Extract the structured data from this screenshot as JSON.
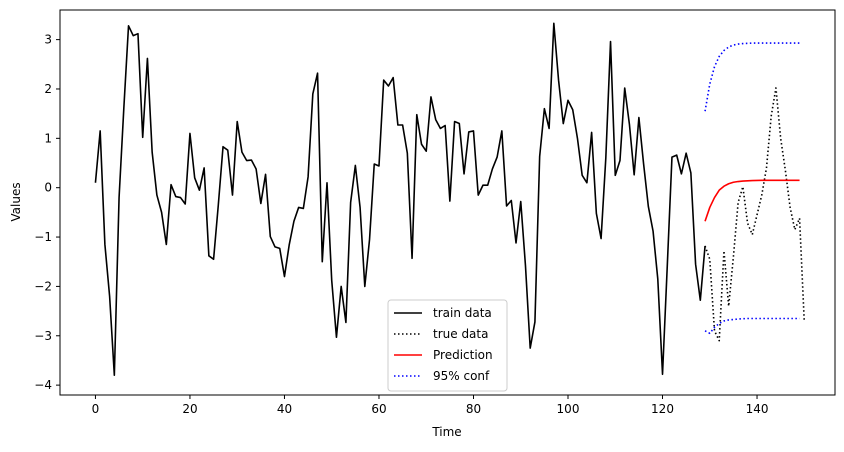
{
  "chart_data": {
    "type": "line",
    "title": "",
    "xlabel": "Time",
    "ylabel": "Values",
    "xlim": [
      -7.5,
      156.5
    ],
    "ylim": [
      -4.2,
      3.6
    ],
    "xticks": [
      0,
      20,
      40,
      60,
      80,
      100,
      120,
      140
    ],
    "yticks": [
      -4,
      -3,
      -2,
      -1,
      0,
      1,
      2,
      3
    ],
    "grid": false,
    "legend_position": "lower center",
    "series": [
      {
        "name": "train data",
        "style": "solid",
        "color": "#000000",
        "x_start": 0,
        "values": [
          0.1,
          1.15,
          -1.15,
          -2.2,
          -3.8,
          -0.2,
          1.6,
          3.28,
          3.08,
          3.12,
          1.02,
          2.62,
          0.72,
          -0.15,
          -0.5,
          -1.15,
          0.06,
          -0.18,
          -0.2,
          -0.33,
          1.1,
          0.2,
          -0.05,
          0.4,
          -1.38,
          -1.45,
          -0.35,
          0.83,
          0.76,
          -0.15,
          1.34,
          0.72,
          0.55,
          0.56,
          0.38,
          -0.32,
          0.27,
          -0.99,
          -1.2,
          -1.23,
          -1.8,
          -1.16,
          -0.68,
          -0.4,
          -0.42,
          0.22,
          1.9,
          2.32,
          -1.5,
          0.1,
          -1.88,
          -3.03,
          -2.0,
          -2.73,
          -0.3,
          0.45,
          -0.4,
          -2.0,
          -1.05,
          0.48,
          0.44,
          2.18,
          2.06,
          2.23,
          1.27,
          1.27,
          0.7,
          -1.43,
          1.48,
          0.88,
          0.74,
          1.84,
          1.38,
          1.2,
          1.26,
          -0.27,
          1.34,
          1.3,
          0.28,
          1.13,
          1.15,
          -0.15,
          0.05,
          0.05,
          0.38,
          0.62,
          1.15,
          -0.37,
          -0.26,
          -1.12,
          -0.28,
          -1.58,
          -3.25,
          -2.72,
          0.63,
          1.6,
          1.2,
          3.33,
          2.18,
          1.3,
          1.77,
          1.58,
          1.0,
          0.25,
          0.1,
          1.12,
          -0.52,
          -1.03,
          0.6,
          2.96,
          0.25,
          0.55,
          2.02,
          1.28,
          0.26,
          1.42,
          0.48,
          -0.38,
          -0.88,
          -1.85,
          -3.78,
          -1.6,
          0.62,
          0.66,
          0.28,
          0.7,
          0.3,
          -1.55,
          -2.28,
          -1.18
        ]
      },
      {
        "name": "true data",
        "style": "dotted",
        "color": "#000000",
        "x_start": 129,
        "values": [
          -1.18,
          -1.45,
          -2.9,
          -3.1,
          -1.28,
          -2.4,
          -1.4,
          -0.3,
          0.02,
          -0.72,
          -0.95,
          -0.55,
          -0.15,
          0.4,
          1.45,
          2.02,
          1.0,
          0.35,
          -0.4,
          -0.85,
          -0.62,
          -2.72
        ]
      },
      {
        "name": "Prediction",
        "style": "solid",
        "color": "#ff0000",
        "x_start": 129,
        "values": [
          -0.68,
          -0.4,
          -0.2,
          -0.05,
          0.03,
          0.08,
          0.11,
          0.125,
          0.135,
          0.14,
          0.145,
          0.148,
          0.15,
          0.15,
          0.15,
          0.15,
          0.15,
          0.15,
          0.15,
          0.15,
          0.15
        ]
      },
      {
        "name": "95% conf",
        "style": "dotted",
        "color": "#0000ff",
        "parts": [
          {
            "label": "upper",
            "x_start": 129,
            "values": [
              1.55,
              2.1,
              2.45,
              2.66,
              2.78,
              2.85,
              2.89,
              2.91,
              2.92,
              2.925,
              2.93,
              2.93,
              2.93,
              2.93,
              2.93,
              2.93,
              2.93,
              2.93,
              2.93,
              2.93,
              2.93
            ]
          },
          {
            "label": "lower",
            "x_start": 129,
            "values": [
              -2.9,
              -2.95,
              -2.83,
              -2.75,
              -2.7,
              -2.68,
              -2.67,
              -2.66,
              -2.655,
              -2.65,
              -2.65,
              -2.65,
              -2.65,
              -2.65,
              -2.65,
              -2.65,
              -2.65,
              -2.65,
              -2.65,
              -2.65,
              -2.65
            ]
          }
        ]
      }
    ]
  },
  "labels": {
    "xlabel": "Time",
    "ylabel": "Values",
    "legend": [
      "train data",
      "true data",
      "Prediction",
      "95% conf"
    ]
  }
}
